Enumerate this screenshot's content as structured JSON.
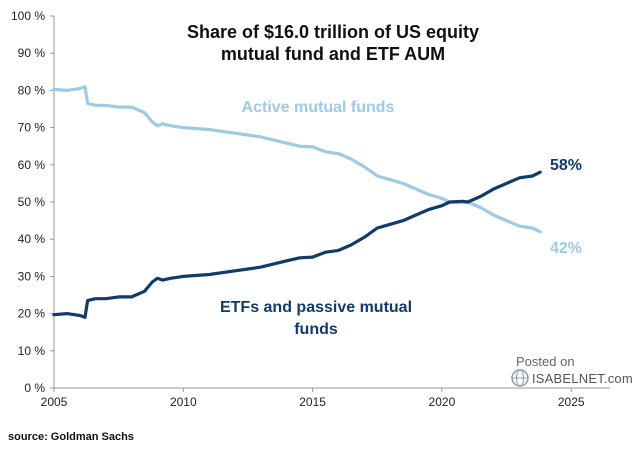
{
  "chart_data": {
    "type": "line",
    "title_lines": [
      "Share of $16.0 trillion of US equity",
      "mutual fund and ETF AUM"
    ],
    "ylim": [
      0,
      100
    ],
    "xlim": [
      2005,
      2026.5
    ],
    "y_ticks": [
      0,
      10,
      20,
      30,
      40,
      50,
      60,
      70,
      80,
      90,
      100
    ],
    "y_tick_labels": [
      "0 %",
      "10 %",
      "20 %",
      "30 %",
      "40 %",
      "50 %",
      "60 %",
      "70 %",
      "80 %",
      "90 %",
      "100 %"
    ],
    "x_ticks": [
      2005,
      2010,
      2015,
      2020,
      2025
    ],
    "x_tick_labels": [
      "2005",
      "2010",
      "2015",
      "2020",
      "2025"
    ],
    "grid": false,
    "colors": {
      "active": "#9ecae4",
      "passive": "#123a6b"
    },
    "series": [
      {
        "name": "Active mutual funds",
        "label": "Active mutual funds",
        "end_label": "42%",
        "x": [
          2005.0,
          2005.5,
          2006.0,
          2006.2,
          2006.3,
          2006.6,
          2007.0,
          2007.5,
          2008.0,
          2008.5,
          2008.8,
          2009.0,
          2009.2,
          2009.5,
          2010.0,
          2011.0,
          2012.0,
          2012.5,
          2013.0,
          2014.0,
          2014.5,
          2015.0,
          2015.5,
          2016.0,
          2016.5,
          2017.0,
          2017.5,
          2018.0,
          2018.5,
          2019.0,
          2019.5,
          2020.0,
          2020.3,
          2020.8,
          2021.0,
          2021.5,
          2022.0,
          2022.5,
          2023.0,
          2023.5,
          2023.8
        ],
        "values": [
          80.3,
          80.0,
          80.5,
          81.0,
          76.5,
          76.0,
          76.0,
          75.5,
          75.5,
          74.0,
          71.5,
          70.5,
          71.0,
          70.5,
          70.0,
          69.5,
          68.5,
          68.0,
          67.5,
          65.8,
          65.0,
          64.8,
          63.5,
          63.0,
          61.5,
          59.5,
          57.0,
          56.0,
          55.0,
          53.5,
          52.0,
          51.0,
          50.0,
          49.8,
          50.0,
          48.5,
          46.5,
          45.0,
          43.5,
          43.0,
          42.0
        ]
      },
      {
        "name": "ETFs and passive mutual funds",
        "label_lines": [
          "ETFs and passive mutual",
          "funds"
        ],
        "end_label": "58%",
        "x": [
          2005.0,
          2005.5,
          2006.0,
          2006.2,
          2006.3,
          2006.6,
          2007.0,
          2007.5,
          2008.0,
          2008.5,
          2008.8,
          2009.0,
          2009.2,
          2009.5,
          2010.0,
          2011.0,
          2012.0,
          2012.5,
          2013.0,
          2014.0,
          2014.5,
          2015.0,
          2015.5,
          2016.0,
          2016.5,
          2017.0,
          2017.5,
          2018.0,
          2018.5,
          2019.0,
          2019.5,
          2020.0,
          2020.3,
          2020.8,
          2021.0,
          2021.5,
          2022.0,
          2022.5,
          2023.0,
          2023.5,
          2023.8
        ],
        "values": [
          19.7,
          20.0,
          19.5,
          19.0,
          23.5,
          24.0,
          24.0,
          24.5,
          24.5,
          26.0,
          28.5,
          29.5,
          29.0,
          29.5,
          30.0,
          30.5,
          31.5,
          32.0,
          32.5,
          34.2,
          35.0,
          35.2,
          36.5,
          37.0,
          38.5,
          40.5,
          43.0,
          44.0,
          45.0,
          46.5,
          48.0,
          49.0,
          50.0,
          50.2,
          50.0,
          51.5,
          53.5,
          55.0,
          56.5,
          57.0,
          58.0
        ]
      }
    ]
  },
  "source": "source: Goldman Sachs",
  "watermark": {
    "posted": "Posted on",
    "brand": "ISABELNET.com"
  }
}
